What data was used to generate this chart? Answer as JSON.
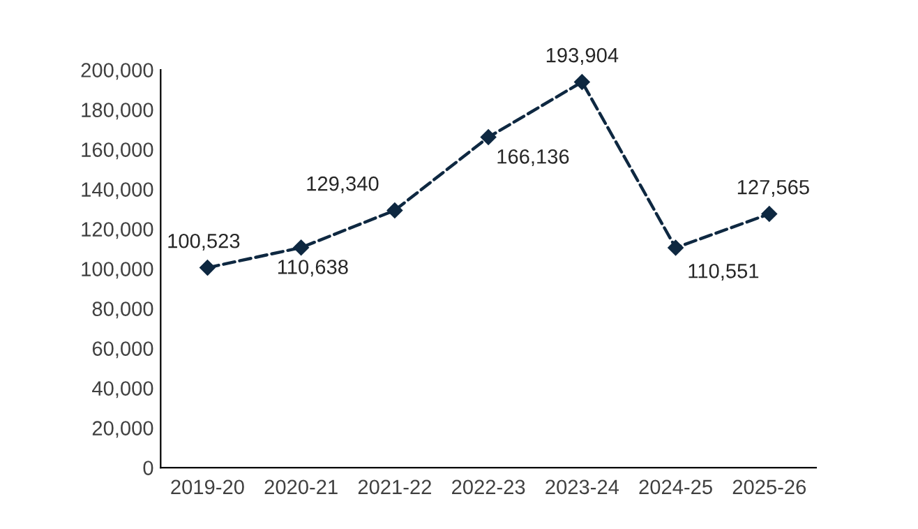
{
  "chart_data": {
    "type": "line",
    "categories": [
      "2019-20",
      "2020-21",
      "2021-22",
      "2022-23",
      "2023-24",
      "2024-25",
      "2025-26"
    ],
    "series": [
      {
        "color": "#0e2841",
        "values": [
          100523,
          110638,
          129340,
          166136,
          193904,
          110551,
          127565
        ],
        "value_labels": [
          "100,523",
          "110,638",
          "129,340",
          "166,136",
          "193,904",
          "110,551",
          "127,565"
        ]
      }
    ],
    "ylim": [
      0,
      200000
    ],
    "yticks": [
      {
        "value": 0,
        "label": "0"
      },
      {
        "value": 20000,
        "label": "20,000"
      },
      {
        "value": 40000,
        "label": "40,000"
      },
      {
        "value": 60000,
        "label": "60,000"
      },
      {
        "value": 80000,
        "label": "80,000"
      },
      {
        "value": 100000,
        "label": "100,000"
      },
      {
        "value": 120000,
        "label": "120,000"
      },
      {
        "value": 140000,
        "label": "140,000"
      },
      {
        "value": 160000,
        "label": "160,000"
      },
      {
        "value": 180000,
        "label": "180,000"
      },
      {
        "value": 200000,
        "label": "200,000"
      }
    ],
    "grid": false,
    "legend": false,
    "marker": "diamond",
    "line_style": "dashed"
  }
}
